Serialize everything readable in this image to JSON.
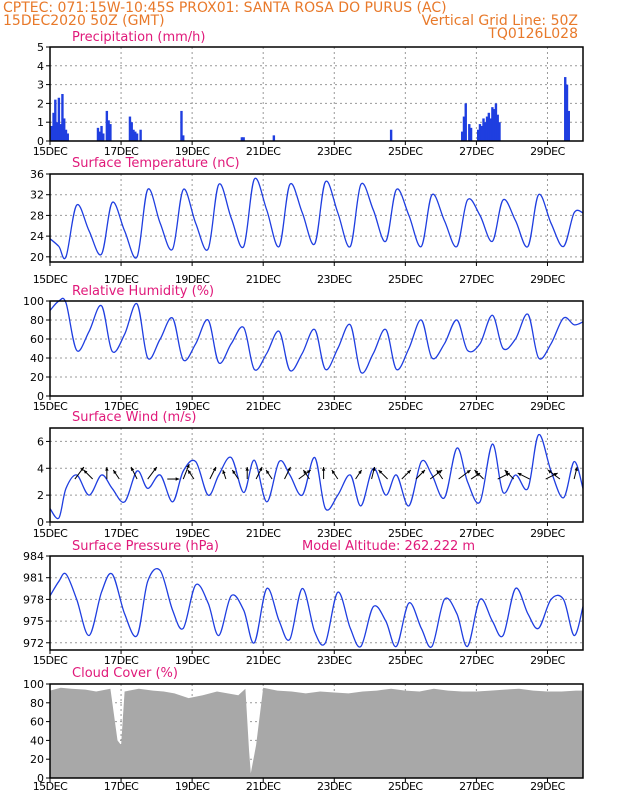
{
  "header": {
    "line1_left": "CPTEC:   071:15W-10:45S   PROX01: SANTA ROSA DO PURUS (AC)",
    "line2_left": "15DEC2020 50Z (GMT)",
    "line2_right": "Vertical Grid Line: 50Z",
    "line3_right": "TQ0126L028"
  },
  "colors": {
    "header": "#e8792a",
    "title": "#e0197a",
    "line": "#1f3ee0",
    "cloud": "#a8a8a8",
    "grid": "#999999",
    "arrow": "#000000"
  },
  "chart_data": [
    {
      "type": "bar",
      "title": "Precipitation (mm/h)",
      "ylim": [
        0,
        5
      ],
      "yticks": [
        0,
        1,
        2,
        3,
        4,
        5
      ],
      "xticks": [
        "15DEC",
        "17DEC",
        "19DEC",
        "21DEC",
        "23DEC",
        "25DEC",
        "27DEC",
        "29DEC"
      ],
      "x_tick_days": [
        0,
        2,
        4,
        6,
        8,
        10,
        12,
        14
      ],
      "xlim_days": [
        0,
        15
      ],
      "grid": true,
      "series": [
        {
          "x_days": [
            0.05,
            0.1,
            0.15,
            0.2,
            0.25,
            0.3,
            0.35,
            0.4,
            0.45,
            0.5,
            1.35,
            1.4,
            1.45,
            1.5,
            1.6,
            1.65,
            1.7,
            2.25,
            2.3,
            2.35,
            2.4,
            2.45,
            2.55,
            3.7,
            3.75,
            5.4,
            5.45,
            6.3,
            9.6,
            11.6,
            11.65,
            11.7,
            11.8,
            11.85,
            12.05,
            12.1,
            12.15,
            12.2,
            12.25,
            12.3,
            12.35,
            12.4,
            12.45,
            12.5,
            12.55,
            12.6,
            12.65,
            14.5,
            14.55,
            14.6
          ],
          "values": [
            0.8,
            1.5,
            2.2,
            1.0,
            2.3,
            0.9,
            2.5,
            1.2,
            0.6,
            0.4,
            0.7,
            0.5,
            0.8,
            0.4,
            1.6,
            1.1,
            0.9,
            1.3,
            1.0,
            0.6,
            0.5,
            0.4,
            0.6,
            1.6,
            0.3,
            0.2,
            0.2,
            0.3,
            0.6,
            0.5,
            1.3,
            2.0,
            0.9,
            0.7,
            0.6,
            0.9,
            0.8,
            1.2,
            1.0,
            1.3,
            1.5,
            1.2,
            1.8,
            1.7,
            2.0,
            1.4,
            1.0,
            3.4,
            3.0,
            1.6
          ]
        }
      ]
    },
    {
      "type": "line",
      "title": "Surface Temperature (nC)",
      "ylim": [
        19,
        36
      ],
      "yticks": [
        20,
        24,
        28,
        32,
        36
      ],
      "xticks": [
        "15DEC",
        "17DEC",
        "19DEC",
        "21DEC",
        "23DEC",
        "25DEC",
        "27DEC",
        "29DEC"
      ],
      "grid": true,
      "series": [
        {
          "x_days": [
            0.0,
            0.25,
            0.45,
            0.75,
            1.1,
            1.45,
            1.75,
            2.1,
            2.45,
            2.75,
            3.1,
            3.45,
            3.75,
            4.1,
            4.45,
            4.75,
            5.1,
            5.45,
            5.75,
            6.1,
            6.45,
            6.75,
            7.1,
            7.45,
            7.75,
            8.1,
            8.45,
            8.75,
            9.1,
            9.45,
            9.75,
            10.1,
            10.45,
            10.75,
            11.1,
            11.45,
            11.75,
            12.1,
            12.45,
            12.75,
            13.1,
            13.45,
            13.75,
            14.1,
            14.45,
            14.75,
            15.0
          ],
          "values": [
            23.5,
            22.0,
            20.0,
            30.0,
            25.0,
            20.5,
            30.5,
            25.0,
            20.0,
            33.0,
            26.5,
            21.5,
            33.0,
            26.5,
            21.5,
            34.0,
            27.5,
            22.0,
            35.0,
            29.0,
            22.0,
            34.0,
            28.5,
            22.5,
            34.5,
            28.5,
            22.0,
            34.0,
            29.0,
            23.0,
            33.0,
            28.0,
            22.0,
            32.0,
            27.0,
            22.0,
            31.0,
            28.0,
            23.0,
            31.0,
            27.0,
            22.0,
            32.0,
            26.5,
            22.0,
            28.5,
            28.5
          ]
        }
      ]
    },
    {
      "type": "line",
      "title": "Relative Humidity (%)",
      "ylim": [
        0,
        100
      ],
      "yticks": [
        0,
        20,
        40,
        60,
        80,
        100
      ],
      "xticks": [
        "15DEC",
        "17DEC",
        "19DEC",
        "21DEC",
        "23DEC",
        "25DEC",
        "27DEC",
        "29DEC"
      ],
      "grid": true,
      "series": [
        {
          "x_days": [
            0.0,
            0.25,
            0.45,
            0.75,
            1.1,
            1.45,
            1.75,
            2.1,
            2.45,
            2.75,
            3.1,
            3.45,
            3.75,
            4.1,
            4.45,
            4.75,
            5.1,
            5.45,
            5.75,
            6.1,
            6.45,
            6.75,
            7.1,
            7.45,
            7.75,
            8.1,
            8.45,
            8.75,
            9.1,
            9.45,
            9.75,
            10.1,
            10.45,
            10.75,
            11.1,
            11.45,
            11.75,
            12.1,
            12.45,
            12.75,
            13.1,
            13.45,
            13.75,
            14.1,
            14.45,
            14.75,
            15.0
          ],
          "values": [
            90,
            100,
            98,
            48,
            68,
            95,
            47,
            65,
            97,
            40,
            60,
            82,
            38,
            55,
            80,
            35,
            55,
            72,
            28,
            45,
            68,
            27,
            45,
            70,
            28,
            50,
            75,
            25,
            45,
            70,
            28,
            50,
            80,
            40,
            55,
            80,
            48,
            55,
            85,
            50,
            60,
            86,
            40,
            55,
            82,
            75,
            78
          ]
        }
      ]
    },
    {
      "type": "line",
      "title": "Surface Wind (m/s)",
      "ylim": [
        0,
        7
      ],
      "yticks": [
        0,
        2,
        4,
        6
      ],
      "xticks": [
        "15DEC",
        "17DEC",
        "19DEC",
        "21DEC",
        "23DEC",
        "25DEC",
        "27DEC",
        "29DEC"
      ],
      "grid": true,
      "series": [
        {
          "x_days": [
            0.0,
            0.25,
            0.45,
            0.75,
            1.1,
            1.45,
            1.75,
            2.1,
            2.45,
            2.75,
            3.1,
            3.45,
            3.75,
            4.1,
            4.45,
            4.75,
            5.1,
            5.45,
            5.75,
            6.1,
            6.45,
            6.75,
            7.1,
            7.45,
            7.75,
            8.1,
            8.45,
            8.75,
            9.1,
            9.45,
            9.75,
            10.1,
            10.45,
            10.75,
            11.1,
            11.45,
            11.75,
            12.1,
            12.45,
            12.75,
            13.1,
            13.45,
            13.75,
            14.1,
            14.45,
            14.75,
            15.0
          ],
          "values": [
            1.0,
            0.3,
            2.5,
            3.5,
            2.0,
            3.5,
            2.5,
            1.5,
            3.8,
            2.5,
            3.5,
            1.5,
            3.8,
            4.5,
            2.0,
            3.5,
            4.8,
            2.2,
            4.6,
            1.5,
            4.5,
            3.5,
            2.0,
            4.8,
            1.0,
            2.0,
            3.5,
            1.2,
            4.0,
            2.0,
            3.5,
            1.2,
            4.5,
            3.5,
            1.8,
            5.5,
            3.0,
            1.5,
            5.8,
            2.2,
            3.5,
            2.5,
            6.5,
            3.8,
            1.8,
            4.5,
            2.5
          ]
        }
      ],
      "wind_vectors": [
        {
          "x_days": 0.7,
          "u": 3,
          "v": 4
        },
        {
          "x_days": 1.2,
          "u": -3,
          "v": 3
        },
        {
          "x_days": 1.6,
          "u": 0,
          "v": 4
        },
        {
          "x_days": 1.95,
          "u": -2,
          "v": 3
        },
        {
          "x_days": 2.45,
          "u": -2,
          "v": 4
        },
        {
          "x_days": 2.75,
          "u": 3,
          "v": 4
        },
        {
          "x_days": 3.3,
          "u": 4,
          "v": 0
        },
        {
          "x_days": 3.75,
          "u": 2,
          "v": 5
        },
        {
          "x_days": 4.05,
          "u": -2,
          "v": 3
        },
        {
          "x_days": 4.5,
          "u": 2,
          "v": 4
        },
        {
          "x_days": 4.95,
          "u": -1,
          "v": 3
        },
        {
          "x_days": 5.3,
          "u": -2,
          "v": 3
        },
        {
          "x_days": 5.55,
          "u": 0,
          "v": 4
        },
        {
          "x_days": 5.8,
          "u": 2,
          "v": 4
        },
        {
          "x_days": 6.25,
          "u": -2,
          "v": 3
        },
        {
          "x_days": 6.6,
          "u": 2,
          "v": 4
        },
        {
          "x_days": 7.0,
          "u": 4,
          "v": 3
        },
        {
          "x_days": 7.3,
          "u": -2,
          "v": 3
        },
        {
          "x_days": 7.7,
          "u": 0,
          "v": 4
        },
        {
          "x_days": 8.1,
          "u": -2,
          "v": 3
        },
        {
          "x_days": 8.6,
          "u": 2,
          "v": 3
        },
        {
          "x_days": 9.05,
          "u": 1,
          "v": 4
        },
        {
          "x_days": 9.5,
          "u": -3,
          "v": 3
        },
        {
          "x_days": 9.9,
          "u": 3,
          "v": 3
        },
        {
          "x_days": 10.3,
          "u": 3,
          "v": 3
        },
        {
          "x_days": 10.7,
          "u": 4,
          "v": 3
        },
        {
          "x_days": 11.05,
          "u": -2,
          "v": 3
        },
        {
          "x_days": 11.5,
          "u": 4,
          "v": 3
        },
        {
          "x_days": 11.85,
          "u": 3,
          "v": 2
        },
        {
          "x_days": 12.2,
          "u": -3,
          "v": 3
        },
        {
          "x_days": 12.6,
          "u": 4,
          "v": 2
        },
        {
          "x_days": 13.05,
          "u": -3,
          "v": 3
        },
        {
          "x_days": 13.5,
          "u": -4,
          "v": 2
        },
        {
          "x_days": 13.95,
          "u": 4,
          "v": 2
        },
        {
          "x_days": 14.35,
          "u": -4,
          "v": 3
        },
        {
          "x_days": 14.75,
          "u": 1,
          "v": 4
        }
      ]
    },
    {
      "type": "line",
      "title": "Surface Pressure (hPa)",
      "annotation": "Model Altitude: 262.222  m",
      "ylim": [
        971,
        984
      ],
      "yticks": [
        972,
        975,
        978,
        981,
        984
      ],
      "xticks": [
        "15DEC",
        "17DEC",
        "19DEC",
        "21DEC",
        "23DEC",
        "25DEC",
        "27DEC",
        "29DEC"
      ],
      "grid": true,
      "series": [
        {
          "x_days": [
            0.0,
            0.25,
            0.45,
            0.75,
            1.1,
            1.45,
            1.75,
            2.1,
            2.45,
            2.75,
            3.1,
            3.45,
            3.75,
            4.1,
            4.45,
            4.75,
            5.1,
            5.45,
            5.75,
            6.1,
            6.45,
            6.75,
            7.1,
            7.45,
            7.75,
            8.1,
            8.45,
            8.75,
            9.1,
            9.45,
            9.75,
            10.1,
            10.45,
            10.75,
            11.1,
            11.45,
            11.75,
            12.1,
            12.45,
            12.75,
            13.1,
            13.45,
            13.75,
            14.1,
            14.45,
            14.75,
            15.0
          ],
          "values": [
            978.5,
            980.5,
            981.5,
            978.0,
            973.0,
            979.0,
            981.5,
            976.0,
            973.0,
            980.5,
            982.0,
            976.5,
            974.0,
            980.0,
            977.5,
            973.0,
            978.5,
            976.5,
            972.0,
            979.5,
            975.0,
            972.5,
            979.5,
            973.5,
            972.0,
            979.0,
            974.0,
            971.5,
            977.0,
            975.0,
            971.5,
            977.5,
            974.0,
            971.5,
            978.0,
            976.0,
            971.5,
            978.0,
            975.0,
            973.0,
            979.5,
            976.0,
            974.0,
            978.0,
            978.0,
            973.0,
            977.0
          ]
        }
      ]
    },
    {
      "type": "area",
      "title": "Cloud Cover (%)",
      "ylim": [
        0,
        100
      ],
      "yticks": [
        0,
        20,
        40,
        60,
        80,
        100
      ],
      "xticks": [
        "15DEC",
        "17DEC",
        "19DEC",
        "21DEC",
        "23DEC",
        "25DEC",
        "27DEC",
        "29DEC"
      ],
      "grid": true,
      "series": [
        {
          "x_days": [
            0.0,
            0.3,
            0.6,
            1.0,
            1.3,
            1.7,
            1.9,
            2.0,
            2.1,
            2.5,
            2.9,
            3.2,
            3.5,
            3.9,
            4.3,
            4.7,
            5.0,
            5.3,
            5.5,
            5.6,
            5.65,
            5.8,
            6.0,
            6.4,
            6.8,
            7.2,
            7.6,
            8.0,
            8.4,
            8.8,
            9.2,
            9.6,
            10.0,
            10.4,
            10.8,
            11.2,
            11.6,
            12.0,
            12.4,
            12.8,
            13.2,
            13.6,
            14.0,
            14.4,
            14.8,
            15.0
          ],
          "values": [
            93,
            96,
            95,
            94,
            92,
            95,
            40,
            35,
            92,
            95,
            93,
            92,
            90,
            85,
            88,
            92,
            90,
            88,
            95,
            30,
            5,
            35,
            96,
            93,
            92,
            90,
            92,
            91,
            90,
            92,
            93,
            95,
            93,
            92,
            95,
            93,
            92,
            92,
            93,
            94,
            95,
            93,
            92,
            92,
            93,
            93
          ]
        }
      ]
    }
  ]
}
